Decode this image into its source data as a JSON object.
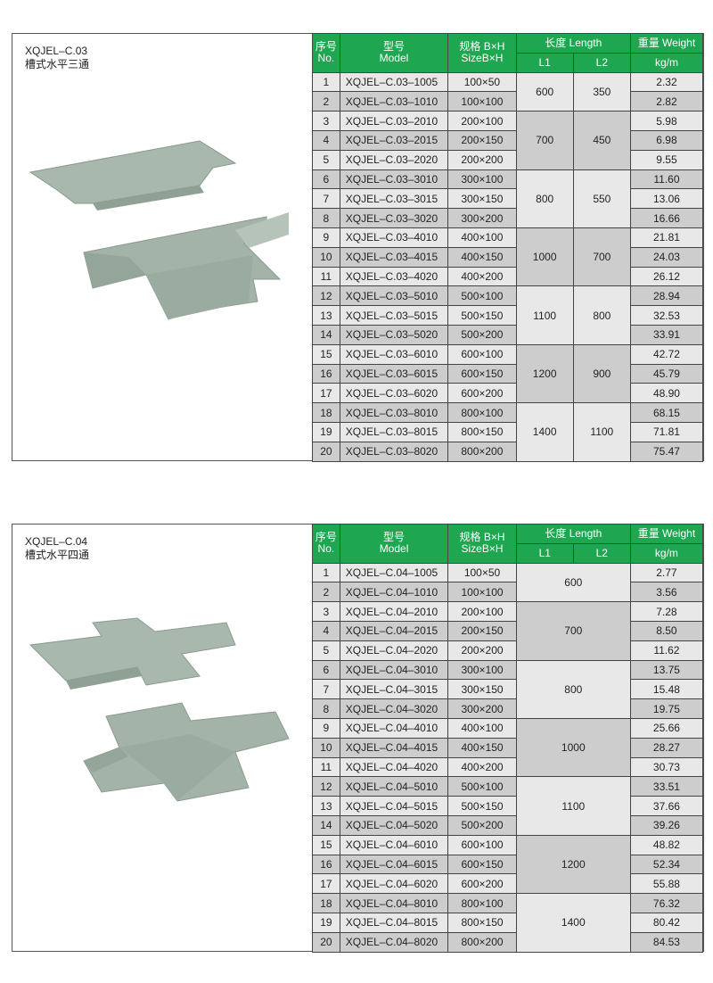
{
  "header_labels": {
    "no_cn": "序号",
    "no_en": "No.",
    "model_cn": "型号",
    "model_en": "Model",
    "size_cn": "规格 B×H",
    "size_en": "SizeB×H",
    "length": "长度 Length",
    "l1": "L1",
    "l2": "L2",
    "weight": "重量 Weight",
    "unit": "kg/m"
  },
  "colors": {
    "header_green": "#1ea650",
    "row_light": "#e8e8e8",
    "row_dark": "#cdcdcd",
    "product": "#a9b8ad"
  },
  "products": [
    {
      "code": "XQJEL–C.03",
      "name": "槽式水平三通",
      "icon": "horizontal-tee-tray-image",
      "rows": [
        [
          "1",
          "XQJEL–C.03–1005",
          "100×50",
          "2.32"
        ],
        [
          "2",
          "XQJEL–C.03–1010",
          "100×100",
          "2.82"
        ],
        [
          "3",
          "XQJEL–C.03–2010",
          "200×100",
          "5.98"
        ],
        [
          "4",
          "XQJEL–C.03–2015",
          "200×150",
          "6.98"
        ],
        [
          "5",
          "XQJEL–C.03–2020",
          "200×200",
          "9.55"
        ],
        [
          "6",
          "XQJEL–C.03–3010",
          "300×100",
          "11.60"
        ],
        [
          "7",
          "XQJEL–C.03–3015",
          "300×150",
          "13.06"
        ],
        [
          "8",
          "XQJEL–C.03–3020",
          "300×200",
          "16.66"
        ],
        [
          "9",
          "XQJEL–C.03–4010",
          "400×100",
          "21.81"
        ],
        [
          "10",
          "XQJEL–C.03–4015",
          "400×150",
          "24.03"
        ],
        [
          "11",
          "XQJEL–C.03–4020",
          "400×200",
          "26.12"
        ],
        [
          "12",
          "XQJEL–C.03–5010",
          "500×100",
          "28.94"
        ],
        [
          "13",
          "XQJEL–C.03–5015",
          "500×150",
          "32.53"
        ],
        [
          "14",
          "XQJEL–C.03–5020",
          "500×200",
          "33.91"
        ],
        [
          "15",
          "XQJEL–C.03–6010",
          "600×100",
          "42.72"
        ],
        [
          "16",
          "XQJEL–C.03–6015",
          "600×150",
          "45.79"
        ],
        [
          "17",
          "XQJEL–C.03–6020",
          "600×200",
          "48.90"
        ],
        [
          "18",
          "XQJEL–C.03–8010",
          "800×100",
          "68.15"
        ],
        [
          "19",
          "XQJEL–C.03–8015",
          "800×150",
          "71.81"
        ],
        [
          "20",
          "XQJEL–C.03–8020",
          "800×200",
          "75.47"
        ]
      ],
      "groups": [
        {
          "rows": 2,
          "l1": "600",
          "l2": "350"
        },
        {
          "rows": 3,
          "l1": "700",
          "l2": "450"
        },
        {
          "rows": 3,
          "l1": "800",
          "l2": "550"
        },
        {
          "rows": 3,
          "l1": "1000",
          "l2": "700"
        },
        {
          "rows": 3,
          "l1": "1100",
          "l2": "800"
        },
        {
          "rows": 3,
          "l1": "1200",
          "l2": "900"
        },
        {
          "rows": 3,
          "l1": "1400",
          "l2": "1100"
        }
      ]
    },
    {
      "code": "XQJEL–C.04",
      "name": "槽式水平四通",
      "icon": "horizontal-cross-tray-image",
      "rows": [
        [
          "1",
          "XQJEL–C.04–1005",
          "100×50",
          "2.77"
        ],
        [
          "2",
          "XQJEL–C.04–1010",
          "100×100",
          "3.56"
        ],
        [
          "3",
          "XQJEL–C.04–2010",
          "200×100",
          "7.28"
        ],
        [
          "4",
          "XQJEL–C.04–2015",
          "200×150",
          "8.50"
        ],
        [
          "5",
          "XQJEL–C.04–2020",
          "200×200",
          "11.62"
        ],
        [
          "6",
          "XQJEL–C.04–3010",
          "300×100",
          "13.75"
        ],
        [
          "7",
          "XQJEL–C.04–3015",
          "300×150",
          "15.48"
        ],
        [
          "8",
          "XQJEL–C.04–3020",
          "300×200",
          "19.75"
        ],
        [
          "9",
          "XQJEL–C.04–4010",
          "400×100",
          "25.66"
        ],
        [
          "10",
          "XQJEL–C.04–4015",
          "400×150",
          "28.27"
        ],
        [
          "11",
          "XQJEL–C.04–4020",
          "400×200",
          "30.73"
        ],
        [
          "12",
          "XQJEL–C.04–5010",
          "500×100",
          "33.51"
        ],
        [
          "13",
          "XQJEL–C.04–5015",
          "500×150",
          "37.66"
        ],
        [
          "14",
          "XQJEL–C.04–5020",
          "500×200",
          "39.26"
        ],
        [
          "15",
          "XQJEL–C.04–6010",
          "600×100",
          "48.82"
        ],
        [
          "16",
          "XQJEL–C.04–6015",
          "600×150",
          "52.34"
        ],
        [
          "17",
          "XQJEL–C.04–6020",
          "600×200",
          "55.88"
        ],
        [
          "18",
          "XQJEL–C.04–8010",
          "800×100",
          "76.32"
        ],
        [
          "19",
          "XQJEL–C.04–8015",
          "800×150",
          "80.42"
        ],
        [
          "20",
          "XQJEL–C.04–8020",
          "800×200",
          "84.53"
        ]
      ],
      "groups": [
        {
          "rows": 2,
          "l": "600"
        },
        {
          "rows": 3,
          "l": "700"
        },
        {
          "rows": 3,
          "l": "800"
        },
        {
          "rows": 3,
          "l": "1000"
        },
        {
          "rows": 3,
          "l": "1100"
        },
        {
          "rows": 3,
          "l": "1200"
        },
        {
          "rows": 3,
          "l": "1400"
        }
      ]
    }
  ]
}
